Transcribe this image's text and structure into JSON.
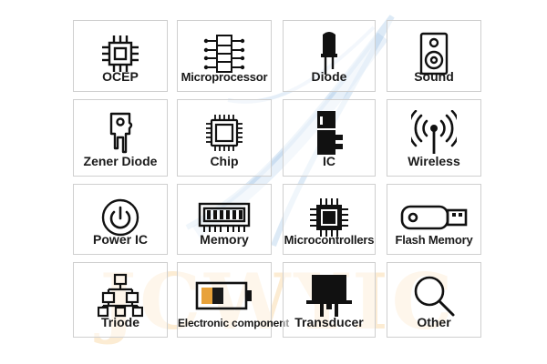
{
  "watermark": {
    "text": "JCWYIC",
    "color": "#f5c882"
  },
  "tiles": [
    {
      "label": "OCEP",
      "icon": "ocep-chip-icon"
    },
    {
      "label": "Microprocessor",
      "icon": "microprocessor-icon"
    },
    {
      "label": "Diode",
      "icon": "diode-icon"
    },
    {
      "label": "Sound",
      "icon": "speaker-icon"
    },
    {
      "label": "Zener Diode",
      "icon": "zener-diode-icon"
    },
    {
      "label": "Chip",
      "icon": "chip-icon"
    },
    {
      "label": "IC",
      "icon": "ic-icon"
    },
    {
      "label": "Wireless",
      "icon": "wireless-antenna-icon"
    },
    {
      "label": "Power IC",
      "icon": "power-icon"
    },
    {
      "label": "Memory",
      "icon": "memory-module-icon"
    },
    {
      "label": "Microcontrollers",
      "icon": "microcontroller-icon"
    },
    {
      "label": "Flash Memory",
      "icon": "usb-flash-drive-icon"
    },
    {
      "label": "Triode",
      "icon": "triode-tree-icon"
    },
    {
      "label": "Electronic component",
      "icon": "battery-icon"
    },
    {
      "label": "Transducer",
      "icon": "transducer-icon"
    },
    {
      "label": "Other",
      "icon": "magnifier-icon"
    }
  ]
}
